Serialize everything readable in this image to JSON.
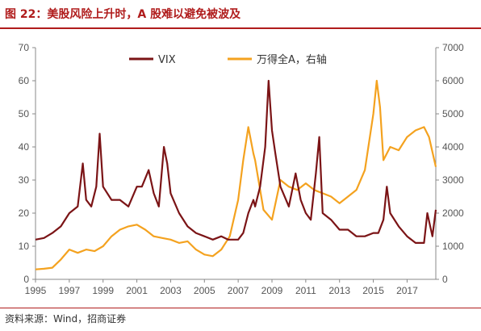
{
  "title": "图 22：美股风险上升时，A 股难以避免被波及",
  "source": "资料来源：Wind，招商证券",
  "colors": {
    "vix": "#7b1416",
    "wind_a": "#f4a21f",
    "accent": "#b01c1c",
    "axis_text": "#555555"
  },
  "chart_data": {
    "type": "line",
    "title": "",
    "xlabel": "",
    "ylabel": "",
    "legend_position": "top-center",
    "grid": false,
    "x_ticks": [
      "1995",
      "1997",
      "1999",
      "2001",
      "2003",
      "2005",
      "2007",
      "2009",
      "2011",
      "2013",
      "2015",
      "2017"
    ],
    "xlim": [
      1995,
      2018.7
    ],
    "y_left": {
      "ticks": [
        "0",
        "10",
        "20",
        "30",
        "40",
        "50",
        "60",
        "70"
      ],
      "ylim": [
        0,
        70
      ]
    },
    "y_right": {
      "ticks": [
        "0",
        "1000",
        "2000",
        "3000",
        "4000",
        "5000",
        "6000",
        "7000"
      ],
      "ylim": [
        0,
        7000
      ]
    },
    "series": [
      {
        "name": "VIX",
        "axis": "left",
        "x": [
          1995,
          1995.5,
          1996,
          1996.5,
          1997,
          1997.5,
          1997.8,
          1998,
          1998.3,
          1998.6,
          1998.8,
          1999,
          1999.5,
          2000,
          2000.5,
          2001,
          2001.3,
          2001.7,
          2002,
          2002.3,
          2002.6,
          2002.8,
          2003,
          2003.5,
          2004,
          2004.5,
          2005,
          2005.5,
          2006,
          2006.4,
          2006.8,
          2007,
          2007.3,
          2007.6,
          2007.9,
          2008,
          2008.3,
          2008.6,
          2008.8,
          2009,
          2009.2,
          2009.5,
          2010,
          2010.4,
          2010.7,
          2011,
          2011.3,
          2011.6,
          2011.8,
          2012,
          2012.5,
          2013,
          2013.5,
          2014,
          2014.5,
          2015,
          2015.3,
          2015.6,
          2015.8,
          2016,
          2016.5,
          2017,
          2017.5,
          2018,
          2018.2,
          2018.5,
          2018.7
        ],
        "values": [
          12,
          12.5,
          14,
          16,
          20,
          22,
          35,
          24,
          22,
          28,
          44,
          28,
          24,
          24,
          22,
          28,
          28,
          33,
          26,
          22,
          40,
          35,
          26,
          20,
          16,
          14,
          13,
          12,
          13,
          12,
          12,
          12,
          14,
          20,
          24,
          22,
          28,
          40,
          60,
          45,
          38,
          28,
          22,
          32,
          24,
          20,
          18,
          32,
          43,
          20,
          18,
          15,
          15,
          13,
          13,
          14,
          14,
          18,
          28,
          20,
          16,
          13,
          11,
          11,
          20,
          13,
          21
        ]
      },
      {
        "name": "万得全A，右轴",
        "axis": "right",
        "x": [
          1995,
          1995.5,
          1996,
          1996.5,
          1997,
          1997.5,
          1998,
          1998.5,
          1999,
          1999.5,
          2000,
          2000.5,
          2001,
          2001.5,
          2002,
          2002.5,
          2003,
          2003.5,
          2004,
          2004.5,
          2005,
          2005.5,
          2006,
          2006.5,
          2007,
          2007.3,
          2007.6,
          2007.9,
          2008,
          2008.5,
          2009,
          2009.5,
          2010,
          2010.5,
          2011,
          2011.5,
          2012,
          2012.5,
          2013,
          2013.5,
          2014,
          2014.5,
          2015,
          2015.2,
          2015.4,
          2015.6,
          2016,
          2016.5,
          2017,
          2017.5,
          2018,
          2018.3,
          2018.7
        ],
        "values": [
          300,
          320,
          350,
          600,
          900,
          800,
          900,
          850,
          1000,
          1300,
          1500,
          1600,
          1650,
          1500,
          1300,
          1250,
          1200,
          1100,
          1150,
          900,
          750,
          700,
          900,
          1300,
          2400,
          3600,
          4600,
          3800,
          3600,
          2100,
          1800,
          3000,
          2800,
          2700,
          2900,
          2700,
          2600,
          2500,
          2300,
          2500,
          2700,
          3300,
          5000,
          6000,
          5200,
          3600,
          4000,
          3900,
          4300,
          4500,
          4600,
          4300,
          3400
        ]
      }
    ]
  }
}
